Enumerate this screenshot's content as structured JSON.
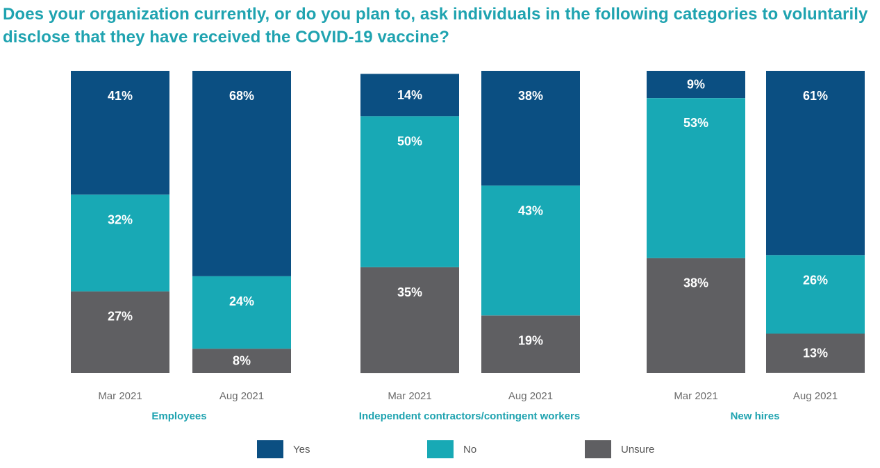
{
  "title": "Does your organization currently, or do you plan to, ask individuals in the following categories to voluntarily disclose that they have received the COVID-19 vaccine?",
  "colors": {
    "Yes": "#0b4f82",
    "No": "#18a9b5",
    "Unsure": "#5f5f62"
  },
  "chart_data": {
    "type": "bar",
    "stacked": true,
    "groups": [
      {
        "name": "Employees",
        "bars": [
          {
            "period": "Mar 2021",
            "Yes": 41,
            "No": 32,
            "Unsure": 27
          },
          {
            "period": "Aug 2021",
            "Yes": 68,
            "No": 24,
            "Unsure": 8
          }
        ]
      },
      {
        "name": "Independent contractors/contingent workers",
        "bars": [
          {
            "period": "Mar 2021",
            "Yes": 14,
            "No": 50,
            "Unsure": 35
          },
          {
            "period": "Aug 2021",
            "Yes": 38,
            "No": 43,
            "Unsure": 19
          }
        ]
      },
      {
        "name": "New hires",
        "bars": [
          {
            "period": "Mar 2021",
            "Yes": 9,
            "No": 53,
            "Unsure": 38
          },
          {
            "period": "Aug 2021",
            "Yes": 61,
            "No": 26,
            "Unsure": 13
          }
        ]
      }
    ],
    "series": [
      "Yes",
      "No",
      "Unsure"
    ],
    "legend_position": "bottom",
    "grid": false
  }
}
